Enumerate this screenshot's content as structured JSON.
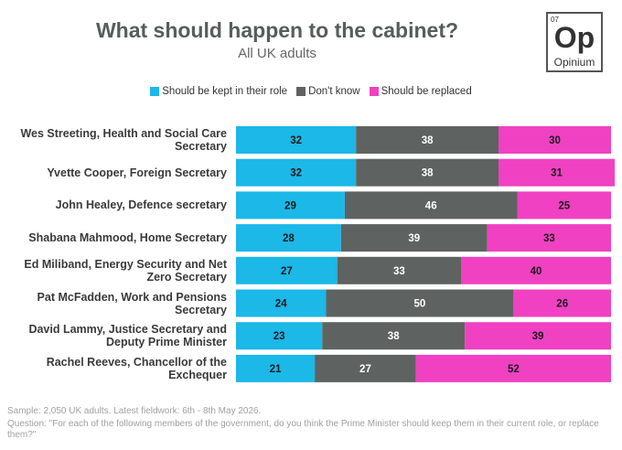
{
  "chart_data": {
    "type": "stacked-bar-horizontal",
    "title": "What should happen to the cabinet?",
    "subtitle": "All UK adults",
    "categories": [
      "Wes Streeting, Health and Social Care Secretary",
      "Yvette Cooper, Foreign Secretary",
      "John Healey, Defence secretary",
      "Shabana Mahmood, Home Secretary",
      "Ed Miliband, Energy Security and Net Zero Secretary",
      "Pat McFadden, Work and Pensions Secretary",
      "David Lammy, Justice Secretary and Deputy Prime Minister",
      "Rachel Reeves, Chancellor of the Exchequer"
    ],
    "series": [
      {
        "name": "Should be kept in their role",
        "color": "#1bb8e8",
        "values": [
          32,
          32,
          29,
          28,
          27,
          24,
          23,
          21
        ]
      },
      {
        "name": "Don't know",
        "color": "#5e6361",
        "values": [
          38,
          38,
          46,
          39,
          33,
          50,
          38,
          27
        ]
      },
      {
        "name": "Should be replaced",
        "color": "#f041c2",
        "values": [
          30,
          31,
          25,
          33,
          40,
          26,
          39,
          52
        ]
      }
    ],
    "notes": [
      "Sample: 2,050 UK adults. Latest fieldwork: 6th - 8th May 2026.",
      "Question: \"For each of the following members of the government, do you think the Prime Minister should keep them in their current role, or replace them?\""
    ]
  },
  "logo": {
    "number": "07",
    "symbol": "Op",
    "name": "Opinium"
  }
}
